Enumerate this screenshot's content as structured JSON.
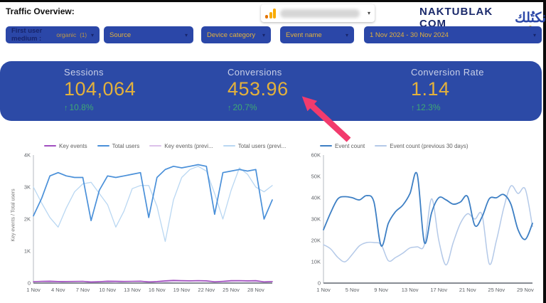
{
  "page_title": "Traffic Overview:",
  "header": {
    "brand_name": "NAKTUBLAK COM",
    "brand_arabic": "نكتُلك",
    "property_caret": "▾"
  },
  "filters": {
    "caret": "▾",
    "chips": [
      {
        "label": "First user medium :",
        "value": "organic",
        "count": "(1)"
      },
      {
        "label": "Source"
      },
      {
        "label": "Device category"
      },
      {
        "label": "Event name"
      },
      {
        "label": "1 Nov 2024 - 30 Nov 2024"
      }
    ]
  },
  "scorecards": {
    "up_arrow": "↑",
    "cards": [
      {
        "label": "Sessions",
        "value": "104,064",
        "delta": "10.8%"
      },
      {
        "label": "Conversions",
        "value": "453.96",
        "delta": "20.7%"
      },
      {
        "label": "Conversion Rate",
        "value": "1.14",
        "delta": "12.3%"
      }
    ]
  },
  "colors": {
    "band_blue": "#2c4aa6",
    "chip_blue": "#2b47a8",
    "gold": "#e3b13c",
    "green": "#3fa873",
    "arrow_pink": "#f23b6d"
  },
  "chart_data": [
    {
      "type": "line",
      "title": "",
      "xlabel": "",
      "ylabel": "Key events / Total users",
      "ylim": [
        0,
        4000
      ],
      "grid": false,
      "legend_position": "top",
      "smooth": false,
      "categories": [
        "1 Nov",
        "2 Nov",
        "3 Nov",
        "4 Nov",
        "5 Nov",
        "6 Nov",
        "7 Nov",
        "8 Nov",
        "9 Nov",
        "10 Nov",
        "11 Nov",
        "12 Nov",
        "13 Nov",
        "14 Nov",
        "15 Nov",
        "16 Nov",
        "17 Nov",
        "18 Nov",
        "19 Nov",
        "20 Nov",
        "21 Nov",
        "22 Nov",
        "23 Nov",
        "24 Nov",
        "25 Nov",
        "26 Nov",
        "27 Nov",
        "28 Nov",
        "29 Nov",
        "30 Nov"
      ],
      "xtick_indices": [
        0,
        3,
        6,
        9,
        12,
        15,
        18,
        21,
        24,
        27
      ],
      "yticks": [
        {
          "v": 0,
          "label": "0"
        },
        {
          "v": 1000,
          "label": "1K"
        },
        {
          "v": 2000,
          "label": "2K"
        },
        {
          "v": 3000,
          "label": "3K"
        },
        {
          "v": 4000,
          "label": "4K"
        }
      ],
      "series": [
        {
          "name": "Key events",
          "color": "#a14ebf",
          "width": 1.6,
          "values": [
            45,
            55,
            60,
            50,
            48,
            52,
            55,
            30,
            42,
            60,
            58,
            52,
            56,
            60,
            35,
            48,
            70,
            85,
            75,
            72,
            78,
            70,
            40,
            55,
            75,
            78,
            72,
            75,
            38,
            50
          ]
        },
        {
          "name": "Total users",
          "color": "#4a90d9",
          "width": 1.7,
          "values": [
            2100,
            2650,
            3350,
            3450,
            3350,
            3300,
            3300,
            1950,
            2900,
            3350,
            3300,
            3350,
            3400,
            3450,
            2050,
            3300,
            3550,
            3650,
            3600,
            3650,
            3700,
            3650,
            2150,
            3450,
            3500,
            3550,
            3500,
            3550,
            2000,
            2600
          ]
        },
        {
          "name": "Key events (previ...",
          "color": "#dcc1ea",
          "width": 1.3,
          "values": [
            50,
            42,
            36,
            30,
            44,
            52,
            55,
            52,
            46,
            38,
            30,
            42,
            50,
            52,
            48,
            28,
            36,
            55,
            60,
            58,
            60,
            55,
            38,
            32,
            52,
            58,
            52,
            46,
            42,
            48
          ]
        },
        {
          "name": "Total users (previ...",
          "color": "#b9d7f2",
          "width": 1.3,
          "values": [
            3000,
            2500,
            2050,
            1750,
            2350,
            2850,
            3100,
            3150,
            2800,
            2450,
            1750,
            2250,
            2950,
            3050,
            3050,
            2400,
            1300,
            2600,
            3300,
            3550,
            3650,
            3500,
            2800,
            2000,
            2900,
            3600,
            3400,
            3000,
            2850,
            3050
          ]
        }
      ]
    },
    {
      "type": "line",
      "title": "",
      "xlabel": "",
      "ylabel": "",
      "ylim": [
        0,
        60000
      ],
      "grid": false,
      "legend_position": "top",
      "smooth": true,
      "categories": [
        "1 Nov",
        "2 Nov",
        "3 Nov",
        "4 Nov",
        "5 Nov",
        "6 Nov",
        "7 Nov",
        "8 Nov",
        "9 Nov",
        "10 Nov",
        "11 Nov",
        "12 Nov",
        "13 Nov",
        "14 Nov",
        "15 Nov",
        "16 Nov",
        "17 Nov",
        "18 Nov",
        "19 Nov",
        "20 Nov",
        "21 Nov",
        "22 Nov",
        "23 Nov",
        "24 Nov",
        "25 Nov",
        "26 Nov",
        "27 Nov",
        "28 Nov",
        "29 Nov",
        "30 Nov"
      ],
      "xtick_indices": [
        0,
        4,
        8,
        12,
        16,
        20,
        24,
        28
      ],
      "yticks": [
        {
          "v": 0,
          "label": "0"
        },
        {
          "v": 10000,
          "label": "10K"
        },
        {
          "v": 20000,
          "label": "20K"
        },
        {
          "v": 30000,
          "label": "30K"
        },
        {
          "v": 40000,
          "label": "40K"
        },
        {
          "v": 50000,
          "label": "50K"
        },
        {
          "v": 60000,
          "label": "60K"
        }
      ],
      "series": [
        {
          "name": "Event count",
          "color": "#3d7fc4",
          "width": 1.8,
          "values": [
            25000,
            33000,
            39500,
            40500,
            40000,
            39000,
            41000,
            38000,
            17500,
            28000,
            33500,
            36500,
            42000,
            51000,
            19000,
            33000,
            40000,
            39000,
            37000,
            38000,
            40500,
            27000,
            31000,
            39500,
            40000,
            41500,
            37000,
            25000,
            20500,
            28000
          ]
        },
        {
          "name": "Event count (previous 30 days)",
          "color": "#b4c9e8",
          "width": 1.5,
          "values": [
            18000,
            16000,
            12000,
            10000,
            13500,
            17500,
            19000,
            19000,
            18000,
            10500,
            12000,
            14000,
            16500,
            17000,
            18000,
            39500,
            20000,
            8500,
            19000,
            28000,
            32500,
            30000,
            32000,
            9000,
            20000,
            35000,
            45500,
            42000,
            44000,
            26500
          ]
        }
      ]
    }
  ]
}
